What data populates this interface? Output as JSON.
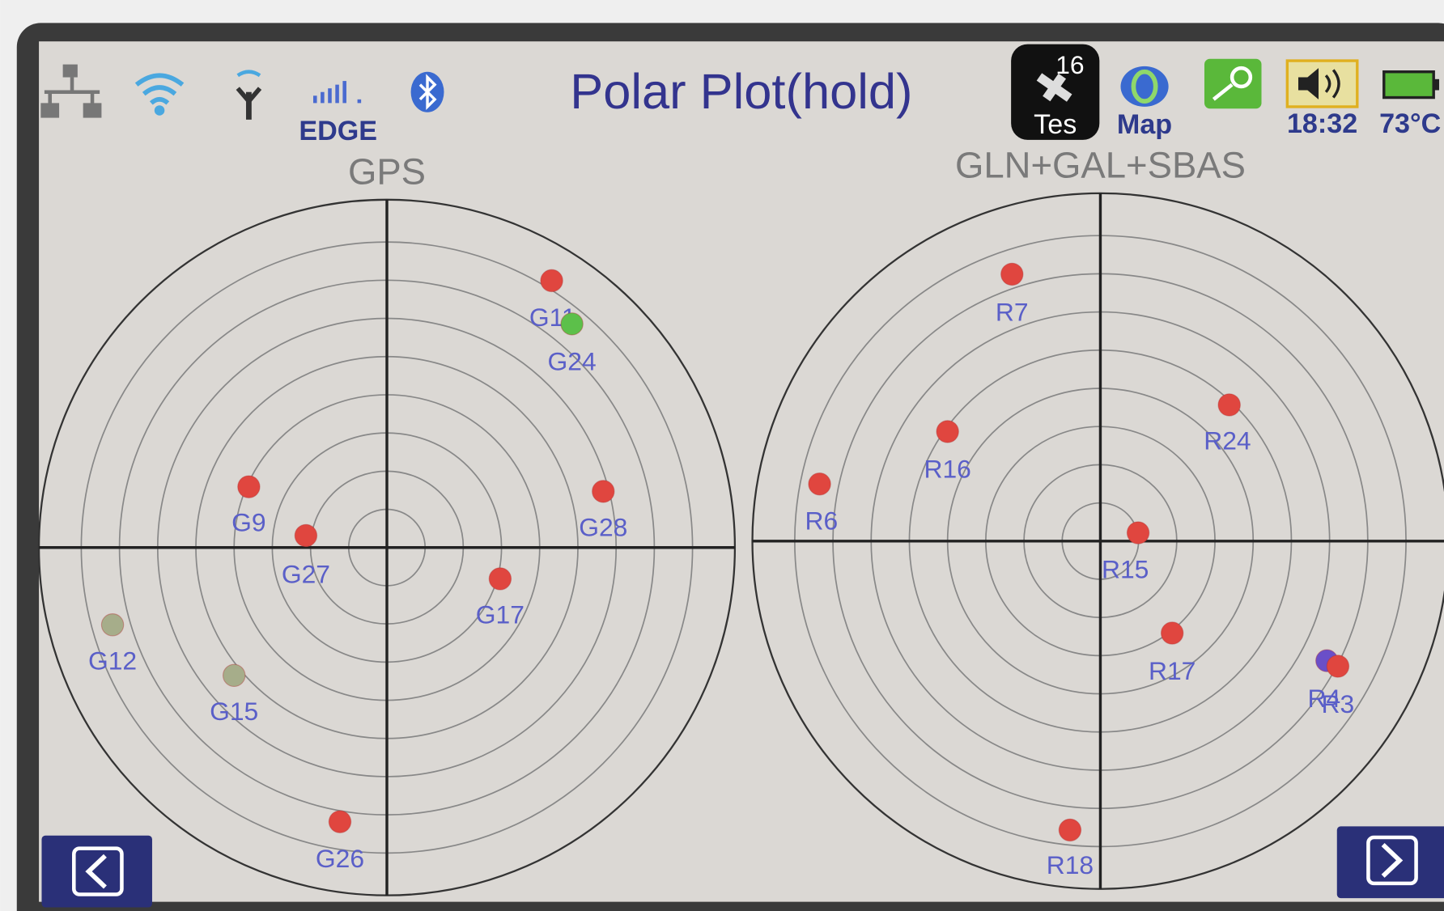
{
  "status_bar": {
    "network_type": "EDGE",
    "title": "Polar Plot(hold)",
    "satellite_count": 16,
    "test_label": "Tes",
    "map_label": "Map",
    "time": "18:32",
    "temperature": "73°C"
  },
  "plots": [
    {
      "title": "GPS",
      "satellites": [
        {
          "label": "G11",
          "color": "#e0463f"
        },
        {
          "label": "G24",
          "color": "#5cc04a"
        },
        {
          "label": "G9",
          "color": "#e0463f"
        },
        {
          "label": "G27",
          "color": "#e0463f"
        },
        {
          "label": "G28",
          "color": "#e0463f"
        },
        {
          "label": "G17",
          "color": "#e0463f"
        },
        {
          "label": "G12",
          "color": "#a6ad8a"
        },
        {
          "label": "G15",
          "color": "#a6ad8a"
        },
        {
          "label": "G26",
          "color": "#e0463f"
        }
      ]
    },
    {
      "title": "GLN+GAL+SBAS",
      "satellites": [
        {
          "label": "R7",
          "color": "#e0463f"
        },
        {
          "label": "R16",
          "color": "#e0463f"
        },
        {
          "label": "R24",
          "color": "#e0463f"
        },
        {
          "label": "R6",
          "color": "#e0463f"
        },
        {
          "label": "R15",
          "color": "#e0463f"
        },
        {
          "label": "R17",
          "color": "#e0463f"
        },
        {
          "label": "R4",
          "color": "#6a4fc8"
        },
        {
          "label": "R3",
          "color": "#e0463f"
        },
        {
          "label": "R18",
          "color": "#e0463f"
        }
      ]
    }
  ]
}
